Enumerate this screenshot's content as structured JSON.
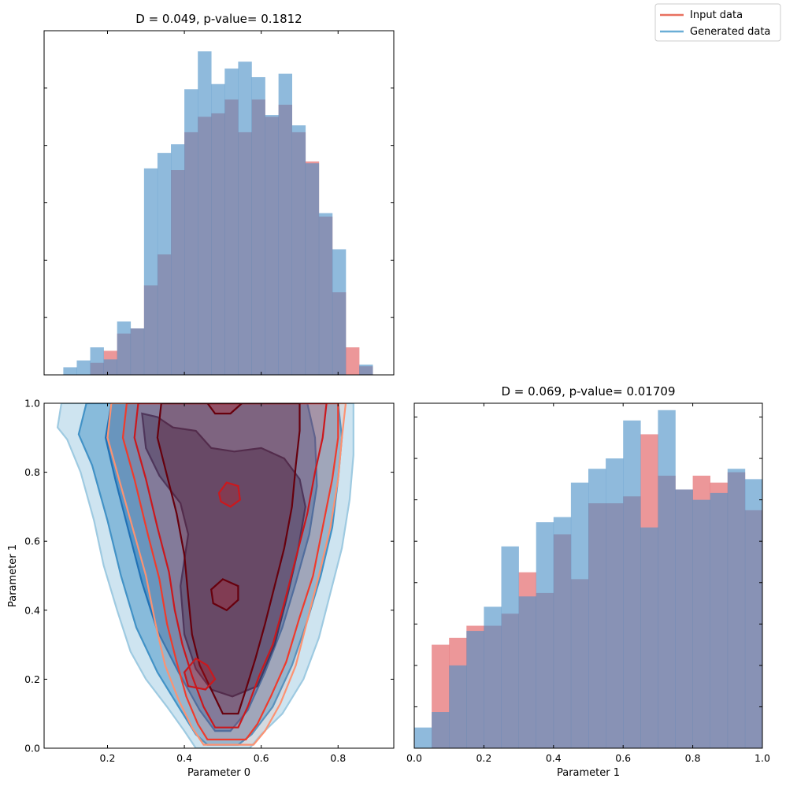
{
  "legend": {
    "items": [
      {
        "label": "Input data",
        "color": "#e8705f"
      },
      {
        "label": "Generated data",
        "color": "#6aaed6"
      }
    ],
    "placement": "top-right"
  },
  "colors": {
    "input_hist": "#e0575b",
    "generated_hist": "#4a8fc7",
    "input_contours": [
      "#fc9272",
      "#ef3b2c",
      "#cb181d",
      "#67000d"
    ],
    "generated_contours": [
      "#9ecae1",
      "#4292c6",
      "#2171b5",
      "#08306b"
    ]
  },
  "chart_data": [
    {
      "type": "histogram",
      "panel": "top-left",
      "title": "D = 0.049, p-value= 0.1812",
      "xlim": [
        0.035,
        0.945
      ],
      "ylim": [
        0,
        1
      ],
      "xticks": [
        0.2,
        0.4,
        0.6,
        0.8
      ],
      "show_xtick_labels": false,
      "show_ytick_labels": false,
      "bin_edges": [
        0.085,
        0.12,
        0.155,
        0.19,
        0.225,
        0.26,
        0.295,
        0.33,
        0.365,
        0.4,
        0.435,
        0.47,
        0.505,
        0.54,
        0.575,
        0.61,
        0.645,
        0.68,
        0.715,
        0.75,
        0.785,
        0.82,
        0.855,
        0.89
      ],
      "series": [
        {
          "name": "Input data",
          "values": [
            0,
            0,
            0.035,
            0.07,
            0.12,
            0.135,
            0.26,
            0.35,
            0.595,
            0.705,
            0.75,
            0.76,
            0.8,
            0.705,
            0.8,
            0.75,
            0.785,
            0.705,
            0.62,
            0.46,
            0.24,
            0.08,
            0.025
          ]
        },
        {
          "name": "Generated data",
          "values": [
            0.022,
            0.042,
            0.08,
            0.045,
            0.155,
            0.135,
            0.6,
            0.645,
            0.67,
            0.83,
            0.94,
            0.845,
            0.89,
            0.91,
            0.865,
            0.755,
            0.875,
            0.725,
            0.615,
            0.47,
            0.365,
            0.0,
            0.03
          ]
        }
      ]
    },
    {
      "type": "contour",
      "panel": "bottom-left",
      "title": "",
      "xlabel": "Parameter 0",
      "ylabel": "Parameter 1",
      "xlim": [
        0.035,
        0.945
      ],
      "ylim": [
        0,
        1
      ],
      "xticks": [
        0.2,
        0.4,
        0.6,
        0.8
      ],
      "xtick_labels": [
        "0.2",
        "0.4",
        "0.6",
        "0.8"
      ],
      "yticks": [
        0.0,
        0.2,
        0.4,
        0.6,
        0.8,
        1.0
      ],
      "ytick_labels": [
        "0.0",
        "0.2",
        "0.4",
        "0.6",
        "0.8",
        "1.0"
      ],
      "series": [
        {
          "name": "Generated data",
          "levels": [
            [
              [
                0.08,
                1.0
              ],
              [
                0.07,
                0.93
              ],
              [
                0.095,
                0.895
              ],
              [
                0.13,
                0.8
              ],
              [
                0.165,
                0.66
              ],
              [
                0.19,
                0.53
              ],
              [
                0.225,
                0.4
              ],
              [
                0.26,
                0.28
              ],
              [
                0.3,
                0.2
              ],
              [
                0.355,
                0.12
              ],
              [
                0.4,
                0.05
              ],
              [
                0.43,
                0.0
              ],
              [
                0.57,
                0.0
              ],
              [
                0.6,
                0.04
              ],
              [
                0.655,
                0.1
              ],
              [
                0.71,
                0.2
              ],
              [
                0.75,
                0.32
              ],
              [
                0.78,
                0.45
              ],
              [
                0.81,
                0.58
              ],
              [
                0.83,
                0.72
              ],
              [
                0.84,
                0.85
              ],
              [
                0.84,
                1.0
              ]
            ],
            [
              [
                0.145,
                1.0
              ],
              [
                0.125,
                0.91
              ],
              [
                0.16,
                0.82
              ],
              [
                0.2,
                0.66
              ],
              [
                0.235,
                0.5
              ],
              [
                0.275,
                0.35
              ],
              [
                0.33,
                0.22
              ],
              [
                0.385,
                0.12
              ],
              [
                0.43,
                0.04
              ],
              [
                0.46,
                0.01
              ],
              [
                0.54,
                0.01
              ],
              [
                0.575,
                0.04
              ],
              [
                0.63,
                0.12
              ],
              [
                0.68,
                0.24
              ],
              [
                0.72,
                0.37
              ],
              [
                0.755,
                0.5
              ],
              [
                0.785,
                0.64
              ],
              [
                0.8,
                0.78
              ],
              [
                0.81,
                0.9
              ],
              [
                0.8,
                1.0
              ]
            ],
            [
              [
                0.21,
                1.0
              ],
              [
                0.195,
                0.9
              ],
              [
                0.22,
                0.78
              ],
              [
                0.255,
                0.63
              ],
              [
                0.29,
                0.48
              ],
              [
                0.33,
                0.34
              ],
              [
                0.385,
                0.22
              ],
              [
                0.44,
                0.11
              ],
              [
                0.48,
                0.05
              ],
              [
                0.52,
                0.05
              ],
              [
                0.565,
                0.11
              ],
              [
                0.61,
                0.22
              ],
              [
                0.655,
                0.35
              ],
              [
                0.69,
                0.48
              ],
              [
                0.725,
                0.62
              ],
              [
                0.745,
                0.76
              ],
              [
                0.74,
                0.9
              ],
              [
                0.72,
                1.0
              ]
            ],
            [
              [
                0.29,
                0.97
              ],
              [
                0.3,
                0.87
              ],
              [
                0.335,
                0.79
              ],
              [
                0.39,
                0.71
              ],
              [
                0.41,
                0.62
              ],
              [
                0.39,
                0.47
              ],
              [
                0.4,
                0.33
              ],
              [
                0.43,
                0.23
              ],
              [
                0.47,
                0.17
              ],
              [
                0.525,
                0.15
              ],
              [
                0.59,
                0.18
              ],
              [
                0.635,
                0.3
              ],
              [
                0.67,
                0.45
              ],
              [
                0.695,
                0.57
              ],
              [
                0.715,
                0.7
              ],
              [
                0.7,
                0.78
              ],
              [
                0.66,
                0.84
              ],
              [
                0.6,
                0.87
              ],
              [
                0.53,
                0.86
              ],
              [
                0.47,
                0.87
              ],
              [
                0.43,
                0.92
              ],
              [
                0.37,
                0.93
              ],
              [
                0.33,
                0.96
              ]
            ]
          ]
        },
        {
          "name": "Input data",
          "levels": [
            [
              [
                0.21,
                1.0
              ],
              [
                0.2,
                0.9
              ],
              [
                0.23,
                0.78
              ],
              [
                0.27,
                0.62
              ],
              [
                0.3,
                0.5
              ],
              [
                0.325,
                0.36
              ],
              [
                0.35,
                0.24
              ],
              [
                0.385,
                0.14
              ],
              [
                0.42,
                0.06
              ],
              [
                0.45,
                0.01
              ],
              [
                0.58,
                0.01
              ],
              [
                0.61,
                0.05
              ],
              [
                0.65,
                0.13
              ],
              [
                0.69,
                0.24
              ],
              [
                0.72,
                0.37
              ],
              [
                0.75,
                0.5
              ],
              [
                0.78,
                0.64
              ],
              [
                0.8,
                0.78
              ],
              [
                0.81,
                0.9
              ],
              [
                0.82,
                1.0
              ]
            ],
            [
              [
                0.25,
                1.0
              ],
              [
                0.24,
                0.9
              ],
              [
                0.27,
                0.78
              ],
              [
                0.305,
                0.62
              ],
              [
                0.335,
                0.49
              ],
              [
                0.355,
                0.36
              ],
              [
                0.38,
                0.25
              ],
              [
                0.405,
                0.15
              ],
              [
                0.435,
                0.07
              ],
              [
                0.46,
                0.025
              ],
              [
                0.56,
                0.025
              ],
              [
                0.59,
                0.07
              ],
              [
                0.625,
                0.15
              ],
              [
                0.665,
                0.25
              ],
              [
                0.7,
                0.38
              ],
              [
                0.735,
                0.5
              ],
              [
                0.76,
                0.64
              ],
              [
                0.785,
                0.78
              ],
              [
                0.8,
                0.9
              ],
              [
                0.8,
                1.0
              ]
            ],
            [
              [
                0.28,
                1.0
              ],
              [
                0.27,
                0.9
              ],
              [
                0.3,
                0.78
              ],
              [
                0.33,
                0.64
              ],
              [
                0.36,
                0.51
              ],
              [
                0.375,
                0.4
              ],
              [
                0.395,
                0.3
              ],
              [
                0.42,
                0.21
              ],
              [
                0.45,
                0.12
              ],
              [
                0.48,
                0.06
              ],
              [
                0.54,
                0.06
              ],
              [
                0.565,
                0.12
              ],
              [
                0.595,
                0.21
              ],
              [
                0.63,
                0.3
              ],
              [
                0.66,
                0.42
              ],
              [
                0.69,
                0.55
              ],
              [
                0.72,
                0.68
              ],
              [
                0.74,
                0.8
              ],
              [
                0.76,
                0.9
              ],
              [
                0.77,
                1.0
              ]
            ],
            [
              [
                0.34,
                1.0
              ],
              [
                0.33,
                0.9
              ],
              [
                0.355,
                0.79
              ],
              [
                0.38,
                0.68
              ],
              [
                0.4,
                0.56
              ],
              [
                0.41,
                0.44
              ],
              [
                0.42,
                0.33
              ],
              [
                0.44,
                0.24
              ],
              [
                0.47,
                0.17
              ],
              [
                0.5,
                0.1
              ],
              [
                0.54,
                0.1
              ],
              [
                0.56,
                0.17
              ],
              [
                0.585,
                0.26
              ],
              [
                0.61,
                0.36
              ],
              [
                0.635,
                0.47
              ],
              [
                0.66,
                0.58
              ],
              [
                0.68,
                0.7
              ],
              [
                0.69,
                0.82
              ],
              [
                0.7,
                0.92
              ],
              [
                0.7,
                1.0
              ]
            ]
          ],
          "islands": [
            [
              [
                0.49,
                0.74
              ],
              [
                0.51,
                0.77
              ],
              [
                0.54,
                0.76
              ],
              [
                0.545,
                0.72
              ],
              [
                0.52,
                0.7
              ],
              [
                0.495,
                0.715
              ]
            ],
            [
              [
                0.47,
                0.46
              ],
              [
                0.5,
                0.49
              ],
              [
                0.54,
                0.47
              ],
              [
                0.54,
                0.43
              ],
              [
                0.51,
                0.4
              ],
              [
                0.475,
                0.42
              ]
            ],
            [
              [
                0.4,
                0.22
              ],
              [
                0.43,
                0.26
              ],
              [
                0.46,
                0.24
              ],
              [
                0.48,
                0.2
              ],
              [
                0.455,
                0.17
              ],
              [
                0.41,
                0.18
              ]
            ],
            [
              [
                0.46,
                1.0
              ],
              [
                0.48,
                0.97
              ],
              [
                0.52,
                0.97
              ],
              [
                0.55,
                1.0
              ]
            ]
          ]
        }
      ]
    },
    {
      "type": "histogram",
      "panel": "bottom-right",
      "title": "D = 0.069, p-value= 0.01709",
      "xlabel": "Parameter 1",
      "xlim": [
        0,
        1
      ],
      "ylim": [
        0,
        1
      ],
      "xticks": [
        0.0,
        0.2,
        0.4,
        0.6,
        0.8,
        1.0
      ],
      "xtick_labels": [
        "0.0",
        "0.2",
        "0.4",
        "0.6",
        "0.8",
        "1.0"
      ],
      "show_ytick_labels": false,
      "bin_edges": [
        0,
        0.05,
        0.1,
        0.15,
        0.2,
        0.25,
        0.3,
        0.35,
        0.4,
        0.45,
        0.5,
        0.55,
        0.6,
        0.65,
        0.7,
        0.75,
        0.8,
        0.85,
        0.9,
        0.95,
        1.0
      ],
      "series": [
        {
          "name": "Input data",
          "values": [
            0,
            0.3,
            0.32,
            0.355,
            0.355,
            0.39,
            0.51,
            0.45,
            0.62,
            0.49,
            0.71,
            0.71,
            0.73,
            0.91,
            0.79,
            0.75,
            0.79,
            0.77,
            0.8,
            0.69
          ]
        },
        {
          "name": "Generated data",
          "values": [
            0.06,
            0.105,
            0.24,
            0.34,
            0.41,
            0.585,
            0.44,
            0.655,
            0.67,
            0.77,
            0.81,
            0.84,
            0.95,
            0.64,
            0.98,
            0.75,
            0.72,
            0.74,
            0.81,
            0.78
          ]
        }
      ]
    }
  ]
}
